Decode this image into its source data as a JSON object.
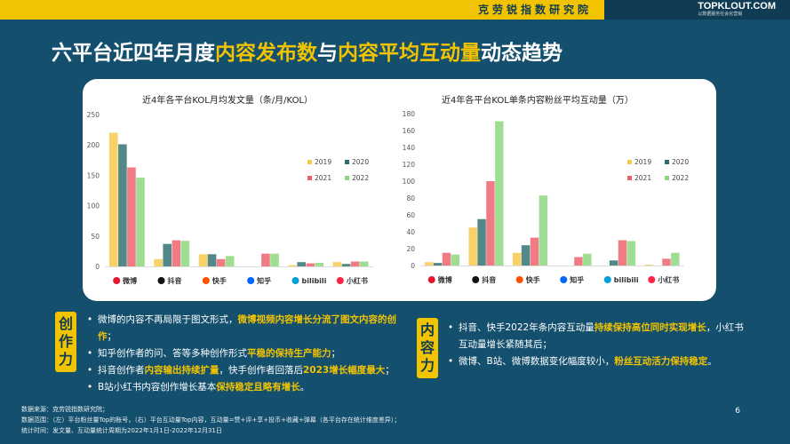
{
  "header": {
    "org": "克劳锐指数研究院",
    "brand": "TOPKLOUT.COM",
    "brand_sub": "以数据服务社会化营销"
  },
  "title": {
    "p1": "六平台近四年月度",
    "h1": "内容发布数",
    "p2": "与",
    "h2": "内容平均互动量",
    "p3": "动态趋势"
  },
  "colors": {
    "2019": "#f7c948",
    "2020": "#2e6e6e",
    "2021": "#ee5f6b",
    "2022": "#8ad67a",
    "accent": "#f2c300",
    "bg": "#14506e"
  },
  "platforms": [
    {
      "name": "微博",
      "icon": "weibo-icon"
    },
    {
      "name": "抖音",
      "icon": "douyin-icon"
    },
    {
      "name": "快手",
      "icon": "kuaishou-icon"
    },
    {
      "name": "知乎",
      "icon": "zhihu-icon"
    },
    {
      "name": "bilibili",
      "icon": "bilibili-icon"
    },
    {
      "name": "小红书",
      "icon": "xiaohongshu-icon"
    }
  ],
  "chart_data": [
    {
      "type": "bar",
      "title": "近4年各平台KOL月均发文量（条/月/KOL）",
      "categories": [
        "微博",
        "抖音",
        "快手",
        "知乎",
        "bilibili",
        "小红书"
      ],
      "ylim": [
        0,
        250
      ],
      "yticks": [
        "0",
        "50",
        "100",
        "150",
        "200",
        "250"
      ],
      "legend_position": "right",
      "series": [
        {
          "name": "2019",
          "values": [
            220,
            12,
            20,
            0,
            2,
            7
          ]
        },
        {
          "name": "2020",
          "values": [
            201,
            37,
            20,
            0,
            7,
            4
          ]
        },
        {
          "name": "2021",
          "values": [
            163,
            43,
            12,
            21,
            5,
            8
          ]
        },
        {
          "name": "2022",
          "values": [
            146,
            42,
            17,
            21,
            6,
            8
          ]
        }
      ]
    },
    {
      "type": "bar",
      "title": "近4年各平台KOL单条内容粉丝平均互动量（万）",
      "categories": [
        "微博",
        "抖音",
        "快手",
        "知乎",
        "bilibili",
        "小红书"
      ],
      "ylim": [
        0,
        180
      ],
      "yticks": [
        "0",
        "20",
        "40",
        "60",
        "80",
        "100",
        "120",
        "140",
        "160",
        "180"
      ],
      "legend_position": "right",
      "series": [
        {
          "name": "2019",
          "values": [
            4,
            45,
            15,
            0,
            0,
            1
          ]
        },
        {
          "name": "2020",
          "values": [
            3,
            55,
            24,
            0,
            6,
            0
          ]
        },
        {
          "name": "2021",
          "values": [
            15,
            100,
            33,
            10,
            30,
            8
          ]
        },
        {
          "name": "2022",
          "values": [
            13,
            171,
            83,
            14,
            29,
            15
          ]
        }
      ]
    }
  ],
  "left_panel": {
    "label": "创作力",
    "bullets": [
      {
        "a": "微博的内容不再局限于图文形式，",
        "b": "微博视频内容增长分流了图文内容的创作",
        "c": "；"
      },
      {
        "a": "知乎创作者的问、答等多种创作形式",
        "b": "平稳的保持生产能力",
        "c": "；"
      },
      {
        "a": "抖音创作者",
        "b": "内容输出持续扩量",
        "c": "，快手创作者回落后",
        "d": "2023增长幅度最大",
        "e": "；"
      },
      {
        "a": "B站小红书内容创作增长基本",
        "b": "保持稳定且略有增长",
        "c": "。"
      }
    ]
  },
  "right_panel": {
    "label": "内容力",
    "bullets": [
      {
        "a": "抖音、快手2022年条内容互动量",
        "b": "持续保持高位同时实现增长",
        "c": "，小红书互动量增长紧随其后；"
      },
      {
        "a": "微博、B站、微博数据变化幅度较小，",
        "b": "粉丝互动活力保持稳定",
        "c": "。"
      }
    ]
  },
  "footer": {
    "line1": "数据来源：克劳锐指数研究院；",
    "line2": "数据范围：（左）平台粉丝量Top的账号，（右）平台互动量Top内容，互动量=赞+评+享+投币+收藏+弹幕（各平台存在统计维度差异）；",
    "line3": "统计时间：发文量、互动量统计周期为2022年1月1日-2022年12月31日"
  },
  "page_number": "6"
}
